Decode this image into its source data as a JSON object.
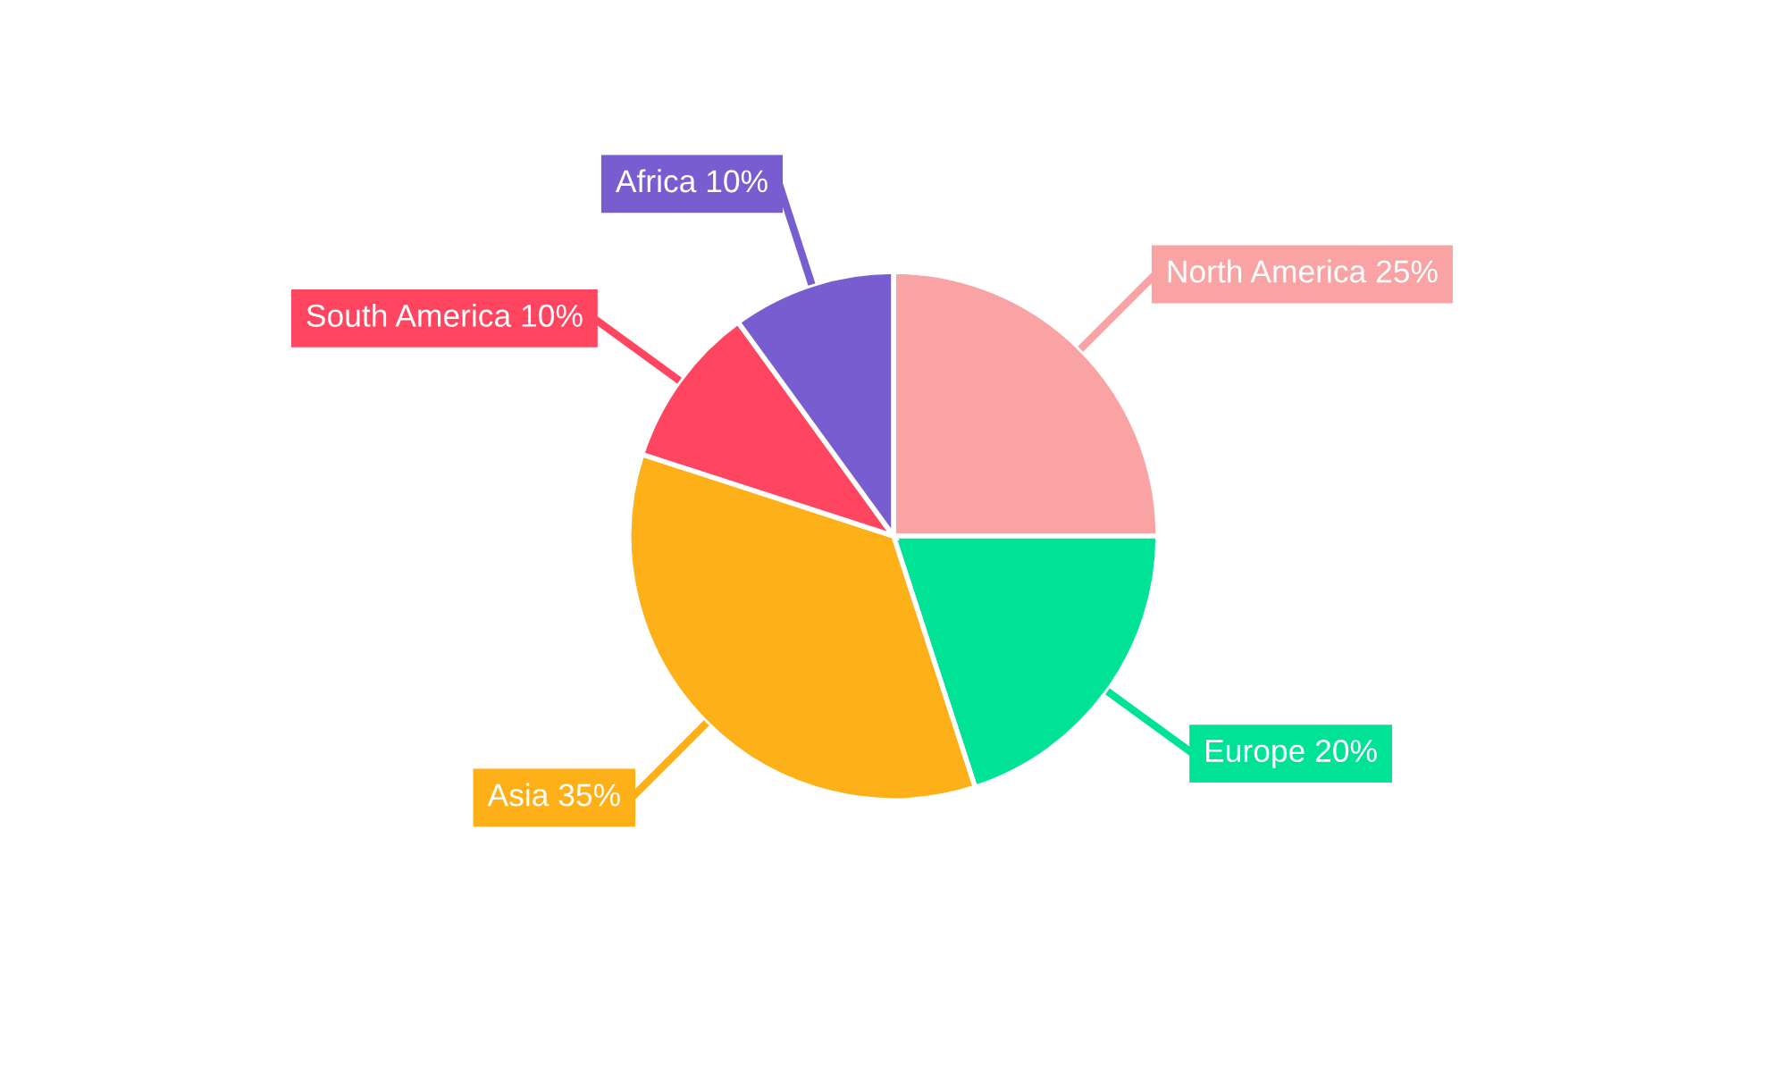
{
  "chart_data": {
    "type": "pie",
    "categories": [
      "North America",
      "Europe",
      "Asia",
      "South America",
      "Africa"
    ],
    "values": [
      25,
      20,
      35,
      10,
      10
    ],
    "colors": [
      "#f9a3a4",
      "#00e396",
      "#feb019",
      "#ff4560",
      "#775dd0"
    ],
    "value_labels": [
      "25%",
      "20%",
      "35%",
      "10%",
      "10%"
    ],
    "legend": false
  }
}
